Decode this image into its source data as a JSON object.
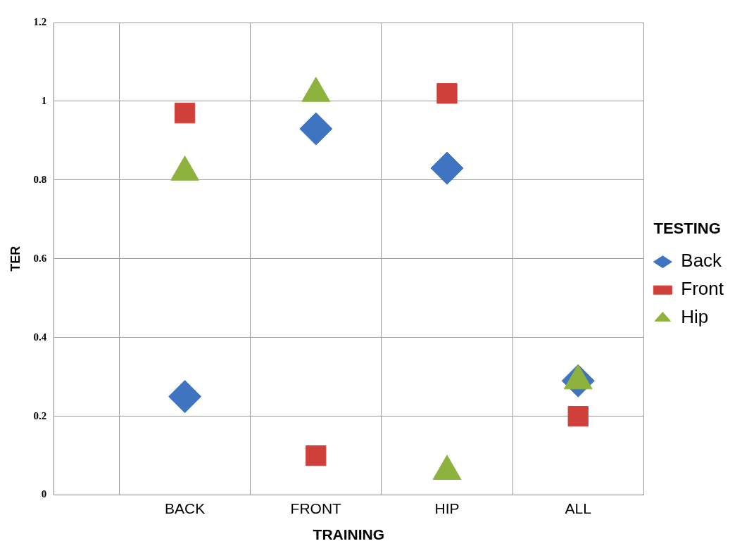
{
  "chart_data": {
    "type": "scatter",
    "xlabel": "TRAINING",
    "ylabel": "TER",
    "legend_title": "TESTING",
    "categories": [
      "BACK",
      "FRONT",
      "HIP",
      "ALL"
    ],
    "ylim": [
      0,
      1.2
    ],
    "yticks": [
      0,
      0.2,
      0.4,
      0.6,
      0.8,
      1,
      1.2
    ],
    "grid": true,
    "legend": "right",
    "series": [
      {
        "name": "Back",
        "color": "#3f74c0",
        "marker": "diamond",
        "values": [
          0.25,
          0.93,
          0.83,
          0.29
        ]
      },
      {
        "name": "Front",
        "color": "#d0403a",
        "marker": "square",
        "values": [
          0.97,
          0.1,
          1.02,
          0.2
        ]
      },
      {
        "name": "Hip",
        "color": "#8db33e",
        "marker": "triangle",
        "values": [
          0.82,
          1.02,
          0.06,
          0.29
        ]
      }
    ]
  }
}
